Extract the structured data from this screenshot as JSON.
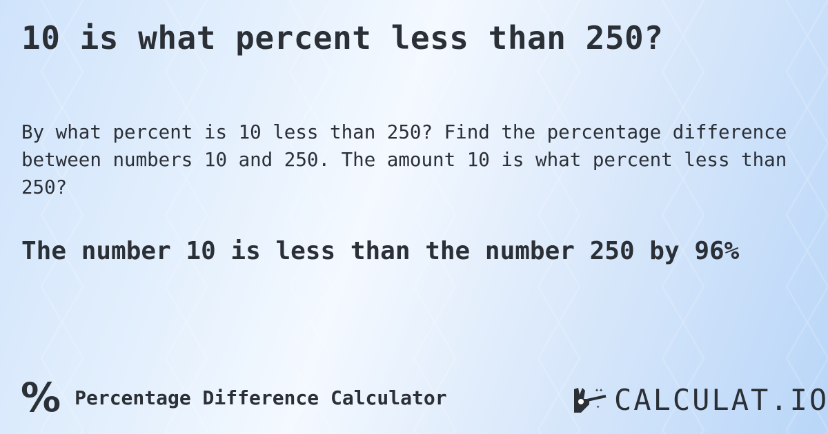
{
  "title": "10 is what percent less than 250?",
  "question": "By what percent is 10 less than 250? Find the percentage difference between numbers 10 and 250. The amount 10 is what percent less than 250?",
  "answer": "The number 10 is less than the number 250 by 96%",
  "footer": {
    "icon": "percent-icon",
    "label": "Percentage Difference Calculator"
  },
  "logo": {
    "text": "CALCULAT.IO",
    "icon": "magic-wand-hand-icon"
  },
  "colors": {
    "text": "#2b2f36",
    "background": "#cfe3fb"
  }
}
